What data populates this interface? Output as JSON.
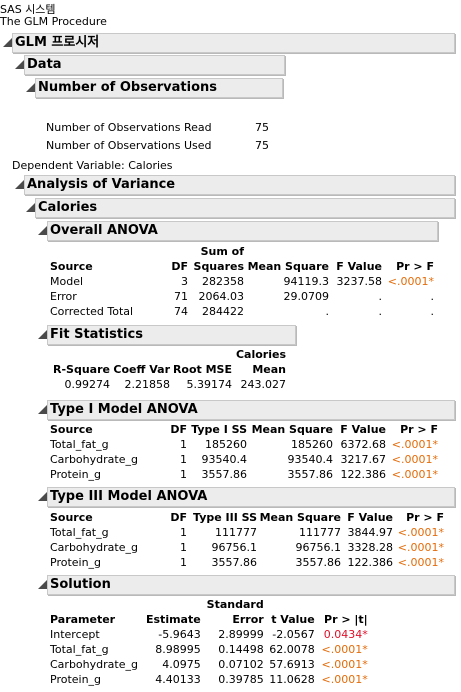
{
  "header": {
    "system": "SAS 시스템",
    "procedure": "The GLM Procedure"
  },
  "sections": {
    "glm": "GLM 프로시저",
    "data": "Data",
    "nobs": "Number of Observations",
    "anova": "Analysis of Variance",
    "calories": "Calories",
    "overall": "Overall ANOVA",
    "fit": "Fit Statistics",
    "type1": "Type I Model ANOVA",
    "type3": "Type III Model ANOVA",
    "solution": "Solution"
  },
  "observations": {
    "read_label": "Number of Observations Read",
    "read_value": "75",
    "used_label": "Number of Observations Used",
    "used_value": "75"
  },
  "dependent": "Dependent Variable: Calories",
  "overall": {
    "h_source": "Source",
    "h_df": "DF",
    "h_ss1": "Sum of",
    "h_ss2": "Squares",
    "h_ms": "Mean Square",
    "h_f": "F Value",
    "h_p": "Pr > F",
    "rows": [
      {
        "source": "Model",
        "df": "3",
        "ss": "282358",
        "ms": "94119.3",
        "f": "3237.58",
        "p": "<.0001*"
      },
      {
        "source": "Error",
        "df": "71",
        "ss": "2064.03",
        "ms": "29.0709",
        "f": ".",
        "p": "."
      },
      {
        "source": "Corrected Total",
        "df": "74",
        "ss": "284422",
        "ms": ".",
        "f": ".",
        "p": "."
      }
    ]
  },
  "fit": {
    "h_rsq": "R-Square",
    "h_cv": "Coeff Var",
    "h_rmse": "Root MSE",
    "h_mean1": "Calories",
    "h_mean2": "Mean",
    "rsq": "0.99274",
    "cv": "2.21858",
    "rmse": "5.39174",
    "mean": "243.027"
  },
  "type1": {
    "h_source": "Source",
    "h_df": "DF",
    "h_ss": "Type I SS",
    "h_ms": "Mean Square",
    "h_f": "F Value",
    "h_p": "Pr > F",
    "rows": [
      {
        "source": "Total_fat_g",
        "df": "1",
        "ss": "185260",
        "ms": "185260",
        "f": "6372.68",
        "p": "<.0001*"
      },
      {
        "source": "Carbohydrate_g",
        "df": "1",
        "ss": "93540.4",
        "ms": "93540.4",
        "f": "3217.67",
        "p": "<.0001*"
      },
      {
        "source": "Protein_g",
        "df": "1",
        "ss": "3557.86",
        "ms": "3557.86",
        "f": "122.386",
        "p": "<.0001*"
      }
    ]
  },
  "type3": {
    "h_source": "Source",
    "h_df": "DF",
    "h_ss": "Type III SS",
    "h_ms": "Mean Square",
    "h_f": "F Value",
    "h_p": "Pr > F",
    "rows": [
      {
        "source": "Total_fat_g",
        "df": "1",
        "ss": "111777",
        "ms": "111777",
        "f": "3844.97",
        "p": "<.0001*"
      },
      {
        "source": "Carbohydrate_g",
        "df": "1",
        "ss": "96756.1",
        "ms": "96756.1",
        "f": "3328.28",
        "p": "<.0001*"
      },
      {
        "source": "Protein_g",
        "df": "1",
        "ss": "3557.86",
        "ms": "3557.86",
        "f": "122.386",
        "p": "<.0001*"
      }
    ]
  },
  "solution": {
    "h_param": "Parameter",
    "h_est": "Estimate",
    "h_se1": "Standard",
    "h_se2": "Error",
    "h_t": "t Value",
    "h_p": "Pr > |t|",
    "rows": [
      {
        "param": "Intercept",
        "est": "-5.9643",
        "se": "2.89999",
        "t": "-2.0567",
        "p": "0.0434*"
      },
      {
        "param": "Total_fat_g",
        "est": "8.98995",
        "se": "0.14498",
        "t": "62.0078",
        "p": "<.0001*"
      },
      {
        "param": "Carbohydrate_g",
        "est": "4.0975",
        "se": "0.07102",
        "t": "57.6913",
        "p": "<.0001*"
      },
      {
        "param": "Protein_g",
        "est": "4.40133",
        "se": "0.39785",
        "t": "11.0628",
        "p": "<.0001*"
      }
    ]
  },
  "colors": {
    "significant": "#e46c0a",
    "significant_marginal": "#e0102a",
    "header_bg": "#ececec"
  }
}
